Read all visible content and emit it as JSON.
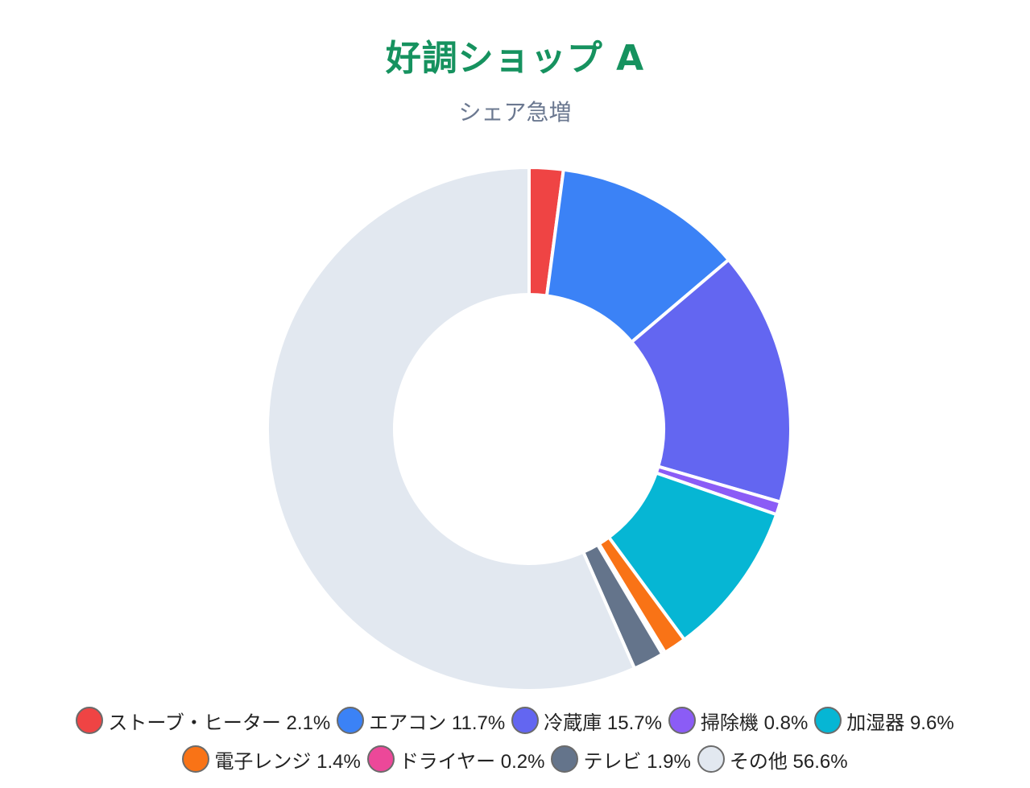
{
  "title": "好調ショップ A",
  "subtitle": "シェア急増",
  "chart_data": {
    "type": "pie",
    "variant": "doughnut",
    "title": "好調ショップ A",
    "subtitle": "シェア急増",
    "categories": [
      "ストーブ・ヒーター",
      "エアコン",
      "冷蔵庫",
      "掃除機",
      "加湿器",
      "電子レンジ",
      "ドライヤー",
      "テレビ",
      "その他"
    ],
    "values": [
      2.1,
      11.7,
      15.7,
      0.8,
      9.6,
      1.4,
      0.2,
      1.9,
      56.6
    ],
    "colors": [
      "#ef4444",
      "#3b82f6",
      "#6366f1",
      "#8b5cf6",
      "#06b6d4",
      "#f97316",
      "#ec4899",
      "#64748b",
      "#e2e8f0"
    ],
    "unit": "%",
    "legend_position": "bottom",
    "start_angle": "top",
    "direction": "clockwise"
  },
  "legend": {
    "rows": [
      [
        {
          "label": "ストーブ・ヒーター 2.1%",
          "color": "#ef4444"
        },
        {
          "label": "エアコン 11.7%",
          "color": "#3b82f6"
        },
        {
          "label": "冷蔵庫 15.7%",
          "color": "#6366f1"
        },
        {
          "label": "掃除機 0.8%",
          "color": "#8b5cf6"
        },
        {
          "label": "加湿器 9.6%",
          "color": "#06b6d4"
        }
      ],
      [
        {
          "label": "電子レンジ 1.4%",
          "color": "#f97316"
        },
        {
          "label": "ドライヤー 0.2%",
          "color": "#ec4899"
        },
        {
          "label": "テレビ 1.9%",
          "color": "#64748b"
        },
        {
          "label": "その他 56.6%",
          "color": "#e2e8f0"
        }
      ]
    ]
  }
}
